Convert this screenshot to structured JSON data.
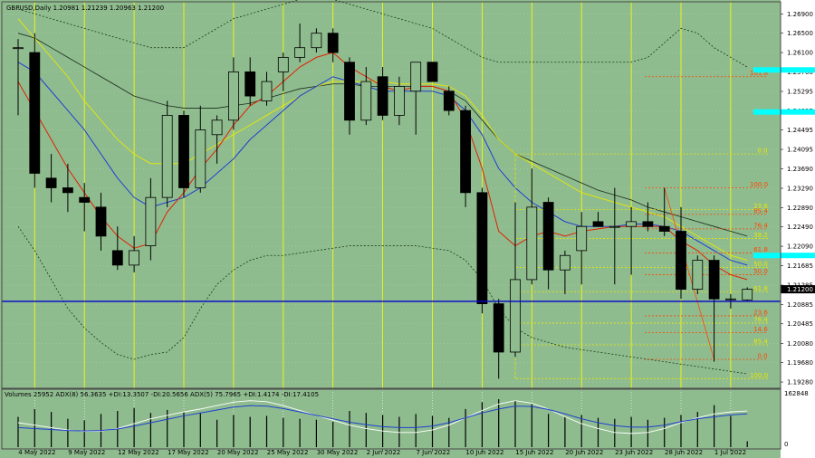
{
  "header": {
    "main_title": "GBPUSD,Daily  1.20981 1.21239 1.20963 1.21200",
    "indicator_title": "Volumes 25952  ADX(8) 56.3635 +DI:13.3507 -DI:20.5656  ADX(5) 75.7965 +DI:1.4174 -DI:17.4105"
  },
  "colors": {
    "background": "#8fbc8f",
    "grid": "#a9cfa9",
    "candle_body": "#000000",
    "candle_up": "#8fbc8f",
    "vline_yellow": "#ffff00",
    "hline_blue": "#0000cd",
    "tag_cyan": "#00ffff",
    "fib_red": "#ff4500",
    "fib_yellow": "#e6e600"
  },
  "chart_data": {
    "type": "candlestick",
    "symbol": "GBPUSD",
    "timeframe": "Daily",
    "ylim": [
      1.1915,
      1.2715
    ],
    "y_ticks": [
      "1.26900",
      "1.26500",
      "1.26100",
      "1.25700",
      "1.25295",
      "1.24895",
      "1.24495",
      "1.24095",
      "1.23690",
      "1.23290",
      "1.22890",
      "1.22490",
      "1.22090",
      "1.21685",
      "1.21285",
      "1.20885",
      "1.20485",
      "1.20080",
      "1.19680",
      "1.19280"
    ],
    "current_price_label": "1.21200",
    "current_price": 1.212,
    "x_labels": [
      "4 May 2022",
      "9 May 2022",
      "12 May 2022",
      "17 May 2022",
      "20 May 2022",
      "25 May 2022",
      "30 May 2022",
      "2 Jun 2022",
      "7 Jun 2022",
      "10 Jun 2022",
      "15 Jun 2022",
      "20 Jun 2022",
      "23 Jun 2022",
      "28 Jun 2022",
      "1 Jul 2022"
    ],
    "candles": [
      {
        "o": 1.262,
        "h": 1.2638,
        "l": 1.248,
        "c": 1.262
      },
      {
        "o": 1.261,
        "h": 1.265,
        "l": 1.233,
        "c": 1.236
      },
      {
        "o": 1.235,
        "h": 1.24,
        "l": 1.23,
        "c": 1.233
      },
      {
        "o": 1.233,
        "h": 1.238,
        "l": 1.228,
        "c": 1.232
      },
      {
        "o": 1.231,
        "h": 1.234,
        "l": 1.224,
        "c": 1.23
      },
      {
        "o": 1.229,
        "h": 1.232,
        "l": 1.22,
        "c": 1.223
      },
      {
        "o": 1.22,
        "h": 1.225,
        "l": 1.216,
        "c": 1.217
      },
      {
        "o": 1.217,
        "h": 1.223,
        "l": 1.2155,
        "c": 1.22
      },
      {
        "o": 1.221,
        "h": 1.235,
        "l": 1.218,
        "c": 1.231
      },
      {
        "o": 1.231,
        "h": 1.251,
        "l": 1.229,
        "c": 1.248
      },
      {
        "o": 1.248,
        "h": 1.249,
        "l": 1.231,
        "c": 1.233
      },
      {
        "o": 1.233,
        "h": 1.25,
        "l": 1.232,
        "c": 1.245
      },
      {
        "o": 1.244,
        "h": 1.248,
        "l": 1.238,
        "c": 1.247
      },
      {
        "o": 1.247,
        "h": 1.26,
        "l": 1.245,
        "c": 1.257
      },
      {
        "o": 1.257,
        "h": 1.26,
        "l": 1.25,
        "c": 1.252
      },
      {
        "o": 1.251,
        "h": 1.257,
        "l": 1.25,
        "c": 1.255
      },
      {
        "o": 1.257,
        "h": 1.261,
        "l": 1.253,
        "c": 1.26
      },
      {
        "o": 1.26,
        "h": 1.267,
        "l": 1.259,
        "c": 1.262
      },
      {
        "o": 1.262,
        "h": 1.266,
        "l": 1.261,
        "c": 1.265
      },
      {
        "o": 1.265,
        "h": 1.266,
        "l": 1.259,
        "c": 1.261
      },
      {
        "o": 1.259,
        "h": 1.26,
        "l": 1.244,
        "c": 1.247
      },
      {
        "o": 1.247,
        "h": 1.258,
        "l": 1.246,
        "c": 1.255
      },
      {
        "o": 1.256,
        "h": 1.258,
        "l": 1.247,
        "c": 1.248
      },
      {
        "o": 1.248,
        "h": 1.256,
        "l": 1.246,
        "c": 1.254
      },
      {
        "o": 1.253,
        "h": 1.259,
        "l": 1.244,
        "c": 1.259
      },
      {
        "o": 1.259,
        "h": 1.259,
        "l": 1.255,
        "c": 1.255
      },
      {
        "o": 1.253,
        "h": 1.254,
        "l": 1.248,
        "c": 1.249
      },
      {
        "o": 1.249,
        "h": 1.25,
        "l": 1.229,
        "c": 1.232
      },
      {
        "o": 1.232,
        "h": 1.233,
        "l": 1.207,
        "c": 1.209
      },
      {
        "o": 1.209,
        "h": 1.21,
        "l": 1.1935,
        "c": 1.199
      },
      {
        "o": 1.199,
        "h": 1.23,
        "l": 1.198,
        "c": 1.214
      },
      {
        "o": 1.214,
        "h": 1.237,
        "l": 1.213,
        "c": 1.229
      },
      {
        "o": 1.23,
        "h": 1.231,
        "l": 1.212,
        "c": 1.216
      },
      {
        "o": 1.216,
        "h": 1.22,
        "l": 1.211,
        "c": 1.219
      },
      {
        "o": 1.22,
        "h": 1.228,
        "l": 1.213,
        "c": 1.225
      },
      {
        "o": 1.226,
        "h": 1.228,
        "l": 1.225,
        "c": 1.225
      },
      {
        "o": 1.225,
        "h": 1.233,
        "l": 1.213,
        "c": 1.225
      },
      {
        "o": 1.225,
        "h": 1.229,
        "l": 1.215,
        "c": 1.226
      },
      {
        "o": 1.226,
        "h": 1.23,
        "l": 1.224,
        "c": 1.225
      },
      {
        "o": 1.225,
        "h": 1.233,
        "l": 1.223,
        "c": 1.224
      },
      {
        "o": 1.224,
        "h": 1.229,
        "l": 1.21,
        "c": 1.212
      },
      {
        "o": 1.212,
        "h": 1.219,
        "l": 1.211,
        "c": 1.218
      },
      {
        "o": 1.218,
        "h": 1.219,
        "l": 1.197,
        "c": 1.21
      },
      {
        "o": 1.21,
        "h": 1.211,
        "l": 1.208,
        "c": 1.21
      },
      {
        "o": 1.2098,
        "h": 1.2124,
        "l": 1.2096,
        "c": 1.212
      }
    ],
    "ma_red": [
      1.255,
      1.249,
      1.243,
      1.237,
      1.232,
      1.227,
      1.223,
      1.2205,
      1.2215,
      1.228,
      1.232,
      1.237,
      1.241,
      1.246,
      1.25,
      1.252,
      1.255,
      1.258,
      1.26,
      1.261,
      1.258,
      1.256,
      1.254,
      1.253,
      1.254,
      1.254,
      1.253,
      1.247,
      1.237,
      1.224,
      1.221,
      1.223,
      1.224,
      1.223,
      1.224,
      1.2245,
      1.225,
      1.225,
      1.225,
      1.225,
      1.222,
      1.22,
      1.217,
      1.215,
      1.214
    ],
    "ma_blue": [
      1.259,
      1.257,
      1.253,
      1.249,
      1.245,
      1.24,
      1.235,
      1.231,
      1.229,
      1.23,
      1.231,
      1.233,
      1.236,
      1.239,
      1.243,
      1.246,
      1.249,
      1.252,
      1.254,
      1.256,
      1.255,
      1.254,
      1.253,
      1.253,
      1.253,
      1.253,
      1.252,
      1.249,
      1.244,
      1.237,
      1.233,
      1.23,
      1.228,
      1.226,
      1.225,
      1.225,
      1.225,
      1.2255,
      1.2255,
      1.225,
      1.224,
      1.222,
      1.22,
      1.218,
      1.217
    ],
    "ma_yellow": [
      1.268,
      1.264,
      1.26,
      1.256,
      1.251,
      1.247,
      1.243,
      1.24,
      1.238,
      1.238,
      1.238,
      1.24,
      1.242,
      1.244,
      1.246,
      1.248,
      1.25,
      1.252,
      1.254,
      1.255,
      1.255,
      1.255,
      1.255,
      1.2545,
      1.2545,
      1.2545,
      1.254,
      1.252,
      1.248,
      1.243,
      1.24,
      1.238,
      1.236,
      1.234,
      1.232,
      1.231,
      1.23,
      1.229,
      1.228,
      1.227,
      1.225,
      1.223,
      1.221,
      1.219,
      1.218
    ],
    "ma_black": [
      1.265,
      1.264,
      1.262,
      1.26,
      1.258,
      1.256,
      1.254,
      1.252,
      1.251,
      1.25,
      1.2495,
      1.2495,
      1.2495,
      1.25,
      1.2505,
      1.2515,
      1.2525,
      1.2535,
      1.254,
      1.2545,
      1.2545,
      1.254,
      1.254,
      1.254,
      1.254,
      1.254,
      1.253,
      1.251,
      1.247,
      1.243,
      1.24,
      1.2385,
      1.237,
      1.2355,
      1.234,
      1.2325,
      1.2315,
      1.2305,
      1.229,
      1.228,
      1.227,
      1.226,
      1.225,
      1.224,
      1.223
    ],
    "bb_upper": [
      1.27,
      1.269,
      1.268,
      1.267,
      1.266,
      1.265,
      1.264,
      1.263,
      1.262,
      1.262,
      1.262,
      1.264,
      1.266,
      1.268,
      1.269,
      1.27,
      1.271,
      1.272,
      1.272,
      1.272,
      1.271,
      1.27,
      1.269,
      1.268,
      1.267,
      1.266,
      1.264,
      1.262,
      1.26,
      1.259,
      1.259,
      1.259,
      1.259,
      1.259,
      1.259,
      1.259,
      1.259,
      1.259,
      1.26,
      1.263,
      1.266,
      1.265,
      1.262,
      1.26,
      1.258
    ],
    "bb_lower": [
      1.225,
      1.22,
      1.214,
      1.208,
      1.204,
      1.201,
      1.1985,
      1.1975,
      1.1985,
      1.199,
      1.202,
      1.208,
      1.213,
      1.216,
      1.218,
      1.219,
      1.219,
      1.2195,
      1.22,
      1.2205,
      1.221,
      1.221,
      1.221,
      1.221,
      1.221,
      1.2205,
      1.22,
      1.218,
      1.214,
      1.208,
      1.204,
      1.202,
      1.201,
      1.2,
      1.1995,
      1.199,
      1.1985,
      1.198,
      1.1975,
      1.197,
      1.1965,
      1.196,
      1.1955,
      1.195,
      1.1945
    ],
    "support_level": 1.2095,
    "fib_levels": [
      {
        "label": "161.8",
        "value": 1.256,
        "color": "red"
      },
      {
        "label": "0.0",
        "value": 1.24,
        "color": "yellow"
      },
      {
        "label": "100.0",
        "value": 1.233,
        "color": "red"
      },
      {
        "label": "23.6",
        "value": 1.2285,
        "color": "yellow"
      },
      {
        "label": "85.4",
        "value": 1.2275,
        "color": "red"
      },
      {
        "label": "76.4",
        "value": 1.2245,
        "color": "red"
      },
      {
        "label": "38.2",
        "value": 1.2225,
        "color": "yellow"
      },
      {
        "label": "61.8",
        "value": 1.2195,
        "color": "red"
      },
      {
        "label": "50.0",
        "value": 1.2165,
        "color": "yellow"
      },
      {
        "label": "50.0",
        "value": 1.215,
        "color": "red"
      },
      {
        "label": "61.8",
        "value": 1.2115,
        "color": "yellow"
      },
      {
        "label": "23.6",
        "value": 1.2065,
        "color": "red"
      },
      {
        "label": "76.4",
        "value": 1.205,
        "color": "yellow"
      },
      {
        "label": "14.6",
        "value": 1.203,
        "color": "red"
      },
      {
        "label": "85.4",
        "value": 1.2005,
        "color": "yellow"
      },
      {
        "label": "0.0",
        "value": 1.1975,
        "color": "red"
      },
      {
        "label": "100.0",
        "value": 1.1935,
        "color": "yellow"
      }
    ],
    "indicator": {
      "scale_label": "162848",
      "zero_label": "0",
      "volumes": [
        0.62,
        0.78,
        0.72,
        0.58,
        0.55,
        0.68,
        0.74,
        0.8,
        0.7,
        0.76,
        0.72,
        0.7,
        0.56,
        0.66,
        0.62,
        0.64,
        0.6,
        0.58,
        0.56,
        0.52,
        0.74,
        0.7,
        0.66,
        0.62,
        0.68,
        0.64,
        0.6,
        0.78,
        0.92,
        0.98,
        0.96,
        0.88,
        0.68,
        0.62,
        0.66,
        0.6,
        0.58,
        0.62,
        0.56,
        0.6,
        0.66,
        0.72,
        0.86,
        0.64,
        0.12
      ],
      "adx_white": [
        0.5,
        0.45,
        0.4,
        0.35,
        0.32,
        0.33,
        0.38,
        0.48,
        0.58,
        0.65,
        0.72,
        0.78,
        0.85,
        0.92,
        0.95,
        0.93,
        0.85,
        0.75,
        0.65,
        0.55,
        0.45,
        0.38,
        0.33,
        0.3,
        0.3,
        0.35,
        0.45,
        0.6,
        0.75,
        0.88,
        0.95,
        0.9,
        0.78,
        0.62,
        0.48,
        0.38,
        0.3,
        0.28,
        0.3,
        0.38,
        0.5,
        0.6,
        0.68,
        0.72,
        0.74
      ],
      "adx_blue": [
        0.4,
        0.38,
        0.36,
        0.34,
        0.33,
        0.34,
        0.37,
        0.43,
        0.5,
        0.57,
        0.64,
        0.7,
        0.76,
        0.82,
        0.85,
        0.84,
        0.79,
        0.72,
        0.65,
        0.58,
        0.51,
        0.46,
        0.42,
        0.4,
        0.4,
        0.43,
        0.5,
        0.6,
        0.7,
        0.78,
        0.84,
        0.83,
        0.77,
        0.68,
        0.58,
        0.5,
        0.44,
        0.41,
        0.41,
        0.45,
        0.52,
        0.58,
        0.62,
        0.66,
        0.68
      ]
    }
  }
}
